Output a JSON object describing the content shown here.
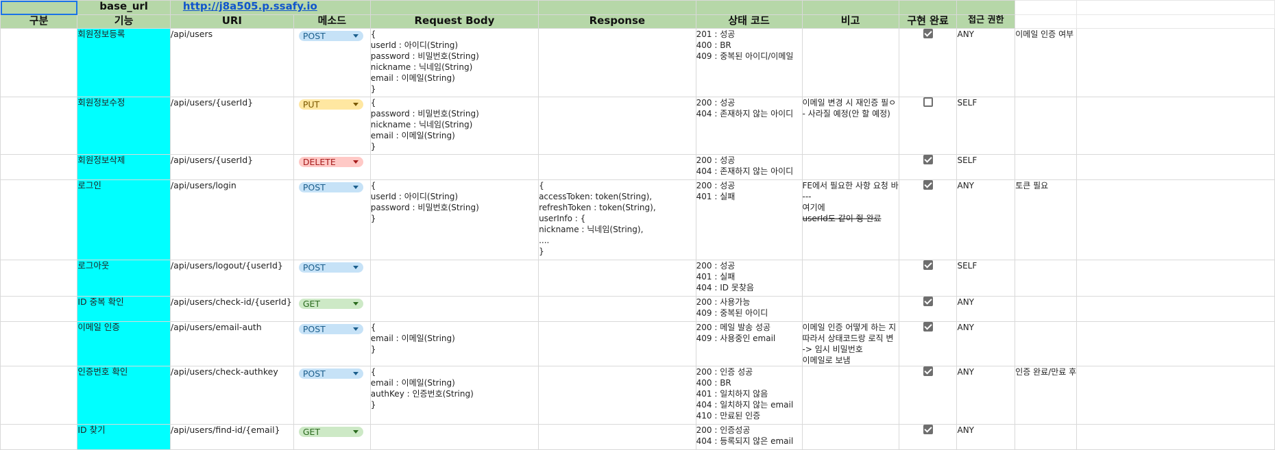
{
  "header1": {
    "base_label": "base_url",
    "base_value": "http://j8a505.p.ssafy.io"
  },
  "header2": {
    "category": "구분",
    "feature": "기능",
    "uri": "URI",
    "method": "메소드",
    "request_body": "Request Body",
    "response": "Response",
    "status_code": "상태 코드",
    "note": "비고",
    "done": "구현 완료",
    "access": "접근 권한"
  },
  "rows": [
    {
      "feature": "회원정보등록",
      "uri": "/api/users",
      "method": "POST",
      "body": [
        "{",
        "userId : 아이디(String)",
        "password : 비밀번호(String)",
        "nickname : 닉네임(String)",
        "email : 이메일(String)",
        "}"
      ],
      "response": [],
      "status": [
        "201 : 성공",
        "400 : BR",
        "409 : 중복된 아이디/이메일"
      ],
      "note": [],
      "done": true,
      "access": "ANY",
      "extra": "이메일 인증 여부"
    },
    {
      "feature": "회원정보수정",
      "uri": "/api/users/{userId}",
      "method": "PUT",
      "body": [
        "{",
        "password : 비밀번호(String)",
        "nickname : 닉네임(String)",
        "email : 이메일(String)",
        "}"
      ],
      "response": [],
      "status": [
        "200 : 성공",
        "404 : 존재하지 않는 아이디"
      ],
      "note": [
        "이메일 변경 시 재인증 필ㅇ",
        "",
        "- 사라질 예정(안 할 예정)"
      ],
      "done": false,
      "access": "SELF",
      "extra": ""
    },
    {
      "feature": "회원정보삭제",
      "uri": "/api/users/{userId}",
      "method": "DELETE",
      "body": [],
      "response": [],
      "status": [
        "200 : 성공",
        "404 : 존재하지 않는 아이디"
      ],
      "note": [],
      "done": true,
      "access": "SELF",
      "extra": ""
    },
    {
      "feature": "로그인",
      "uri": "/api/users/login",
      "method": "POST",
      "body": [
        "{",
        "userId : 아이디(String)",
        "password : 비밀번호(String)",
        "}"
      ],
      "response": [
        "{",
        " accessToken: token(String),",
        " refreshToken : token(String),",
        " userInfo : {",
        "  nickname : 닉네임(String),",
        "   ....",
        "}"
      ],
      "status": [
        "200 : 성공",
        "401 : 실패"
      ],
      "note": [
        "FE에서 필요한 사항 요청 바",
        "---",
        "여기에",
        "userId도 같이 줭 완료"
      ],
      "done": true,
      "access": "ANY",
      "extra": "토큰 필요"
    },
    {
      "feature": "로그아웃",
      "uri": "/api/users/logout/{userId}",
      "method": "POST",
      "body": [],
      "response": [],
      "status": [
        "200 : 성공",
        "401 : 실패",
        "404 : ID 못찾음"
      ],
      "note": [],
      "done": true,
      "access": "SELF",
      "extra": ""
    },
    {
      "feature": "ID 중복 확인",
      "uri": "/api/users/check-id/{userId}",
      "method": "GET",
      "body": [],
      "response": [],
      "status": [
        "200 : 사용가능",
        "409 : 중복된 아이디"
      ],
      "note": [],
      "done": true,
      "access": "ANY",
      "extra": ""
    },
    {
      "feature": "이메일 인증",
      "uri": "/api/users/email-auth",
      "method": "POST",
      "body": [
        "{",
        "email : 이메일(String)",
        "}"
      ],
      "response": [],
      "status": [
        "200 : 메일 발송 성공",
        "409 : 사용중인 email"
      ],
      "note": [
        "이메일 인증 어떻게 하는 지",
        "따라서 상태코드랑 로직 변",
        "",
        "-> 임시 비밀번호",
        " 이메일로 보냄"
      ],
      "done": true,
      "access": "ANY",
      "extra": ""
    },
    {
      "feature": "인증번호 확인",
      "uri": "/api/users/check-authkey",
      "method": "POST",
      "body": [
        "{",
        "email : 이메일(String)",
        "authKey : 인증번호(String)",
        "}"
      ],
      "response": [],
      "status": [
        "200 : 인증 성공",
        "400 : BR",
        "401 : 일치하지 않음",
        "404 : 일치하지 않는 email",
        "410 : 만료된 인증"
      ],
      "note": [],
      "done": true,
      "access": "ANY",
      "extra": "인증 완료/만료 후"
    },
    {
      "feature": "ID 찾기",
      "uri": "/api/users/find-id/{email}",
      "method": "GET",
      "body": [],
      "response": [],
      "status": [
        "200 : 인증성공",
        "404 : 등록되지 않은 email"
      ],
      "note": [],
      "done": true,
      "access": "ANY",
      "extra": ""
    }
  ],
  "colors": {
    "header_green": "#b6d7a8",
    "feature_cyan": "#00ffff",
    "post": "#c6e2f7",
    "put": "#ffe7a1",
    "delete": "#ffc9c6",
    "get": "#cde9c6"
  }
}
